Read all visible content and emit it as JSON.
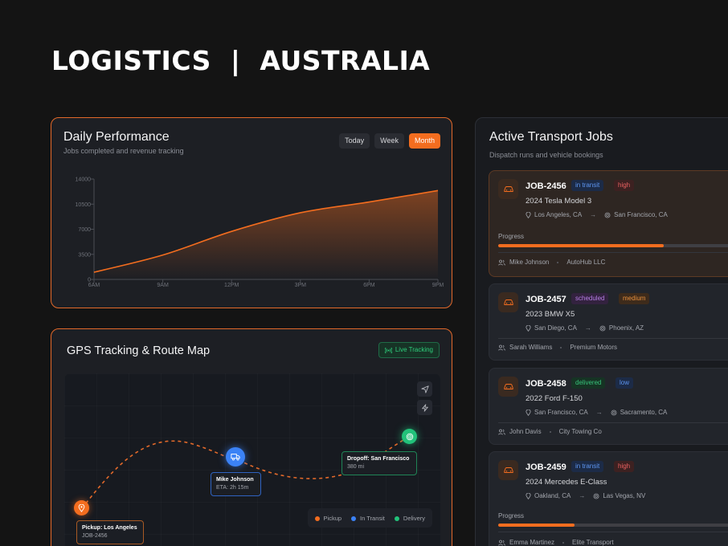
{
  "header": {
    "title": "LOGISTICS  |  AUSTRALIA"
  },
  "performance": {
    "title": "Daily Performance",
    "subtitle": "Jobs completed and revenue tracking",
    "tabs": [
      {
        "label": "Today",
        "active": false
      },
      {
        "label": "Week",
        "active": false
      },
      {
        "label": "Month",
        "active": true
      }
    ]
  },
  "chart_data": {
    "type": "area",
    "title": "Daily Performance",
    "categories": [
      "6AM",
      "9AM",
      "12PM",
      "3PM",
      "6PM",
      "9PM"
    ],
    "yticks": [
      "14000",
      "10500",
      "7000",
      "3500",
      "0"
    ],
    "ylim": [
      0,
      14000
    ],
    "series": [
      {
        "values": [
          1000,
          3400,
          6700,
          9300,
          10800,
          12400
        ]
      }
    ],
    "grid": false,
    "color": "#f36d1f"
  },
  "gps": {
    "title": "GPS Tracking & Route Map",
    "live_label": "Live Tracking",
    "pickup": {
      "title": "Pickup: Los Angeles",
      "sub": "JOB-2456"
    },
    "driver": {
      "title": "Mike Johnson",
      "sub": "ETA: 2h 15m"
    },
    "dropoff": {
      "title": "Dropoff: San Francisco",
      "sub": "380 mi"
    },
    "legend": [
      {
        "label": "Pickup",
        "color": "#f36d1f"
      },
      {
        "label": "In Transit",
        "color": "#3b82f6"
      },
      {
        "label": "Delivery",
        "color": "#22c27a"
      }
    ]
  },
  "jobs": {
    "title": "Active Transport Jobs",
    "subtitle": "Dispatch runs and vehicle bookings",
    "progress_label": "Progress",
    "items": [
      {
        "id": "JOB-2456",
        "status": "in transit",
        "priority": "high",
        "vehicle": "2024 Tesla Model 3",
        "from": "Los Angeles, CA",
        "to": "San Francisco, CA",
        "progress": 0.65,
        "driver": "Mike Johnson",
        "company": "AutoHub LLC"
      },
      {
        "id": "JOB-2457",
        "status": "scheduled",
        "priority": "medium",
        "vehicle": "2023 BMW X5",
        "from": "San Diego, CA",
        "to": "Phoenix, AZ",
        "driver": "Sarah Williams",
        "company": "Premium Motors"
      },
      {
        "id": "JOB-2458",
        "status": "delivered",
        "priority": "low",
        "vehicle": "2022 Ford F-150",
        "from": "San Francisco, CA",
        "to": "Sacramento, CA",
        "driver": "John Davis",
        "company": "City Towing Co"
      },
      {
        "id": "JOB-2459",
        "status": "in transit",
        "priority": "high",
        "vehicle": "2024 Mercedes E-Class",
        "from": "Oakland, CA",
        "to": "Las Vegas, NV",
        "progress": 0.3,
        "driver": "Emma Martinez",
        "company": "Elite Transport"
      }
    ]
  }
}
